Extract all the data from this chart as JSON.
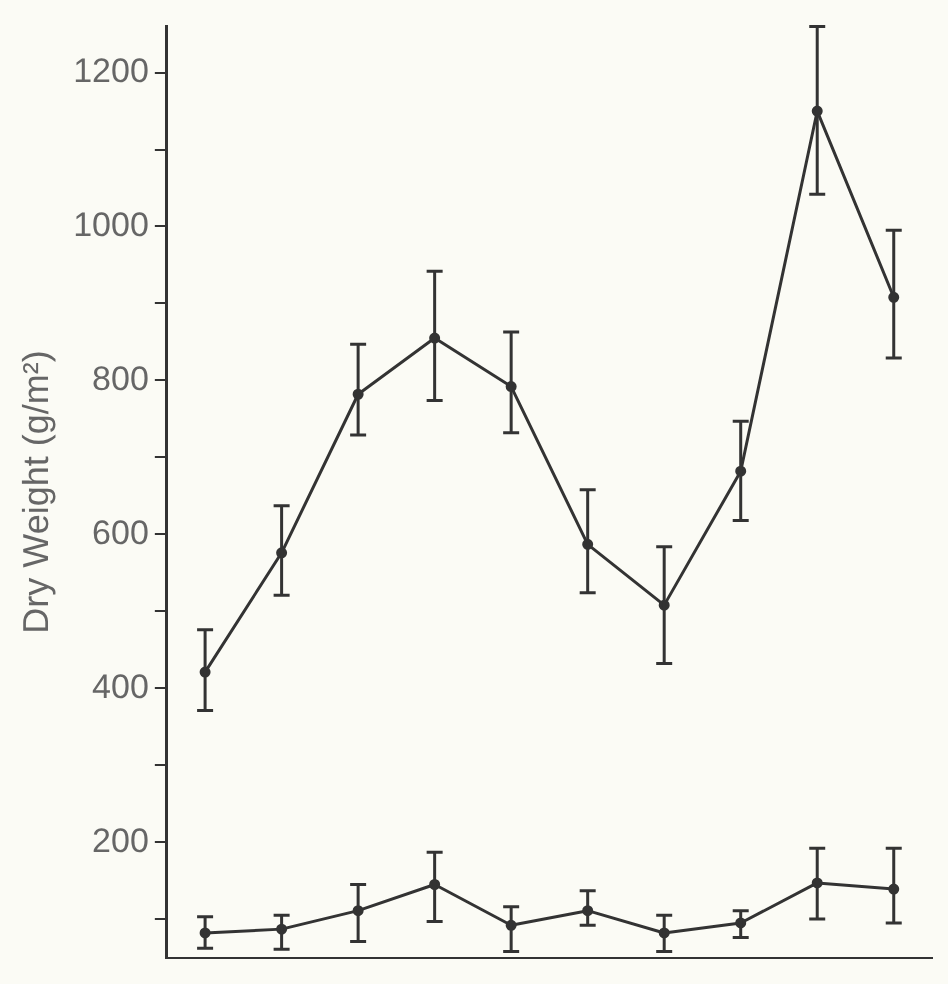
{
  "chart_data": {
    "type": "line",
    "ylabel": "Dry Weight (g/m²)",
    "categories": [
      null,
      null,
      null,
      null,
      null,
      null,
      null,
      null,
      null,
      null
    ],
    "series": [
      {
        "color": "#333333",
        "values": [
          421,
          576,
          782,
          855,
          792,
          587,
          508,
          682,
          1150,
          908
        ],
        "errors": [
          [
            371,
            476
          ],
          [
            521,
            637
          ],
          [
            729,
            847
          ],
          [
            774,
            942
          ],
          [
            732,
            863
          ],
          [
            524,
            658
          ],
          [
            432,
            584
          ],
          [
            618,
            747
          ],
          [
            1042,
            1260
          ],
          [
            829,
            995
          ]
        ]
      },
      {
        "color": "#333333",
        "values": [
          82,
          87,
          111,
          145,
          92,
          111,
          82,
          95,
          147,
          139
        ],
        "errors": [
          [
            62,
            103
          ],
          [
            61,
            105
          ],
          [
            71,
            145
          ],
          [
            97,
            187
          ],
          [
            58,
            116
          ],
          [
            92,
            137
          ],
          [
            58,
            105
          ],
          [
            76,
            111
          ],
          [
            100,
            192
          ],
          [
            95,
            192
          ]
        ]
      }
    ],
    "ylim": [
      50,
      1260
    ],
    "yticks": [
      {
        "value": 100,
        "label": null
      },
      200,
      {
        "value": 300,
        "label": null
      },
      400,
      {
        "value": 500,
        "label": null
      },
      600,
      {
        "value": 700,
        "label": null
      },
      800,
      {
        "value": 900,
        "label": null
      },
      1000,
      {
        "value": 1100,
        "label": null
      },
      1200
    ],
    "tick_labels": "y",
    "grid": false,
    "legend": false,
    "marker": "circle",
    "line_style": "solid"
  }
}
